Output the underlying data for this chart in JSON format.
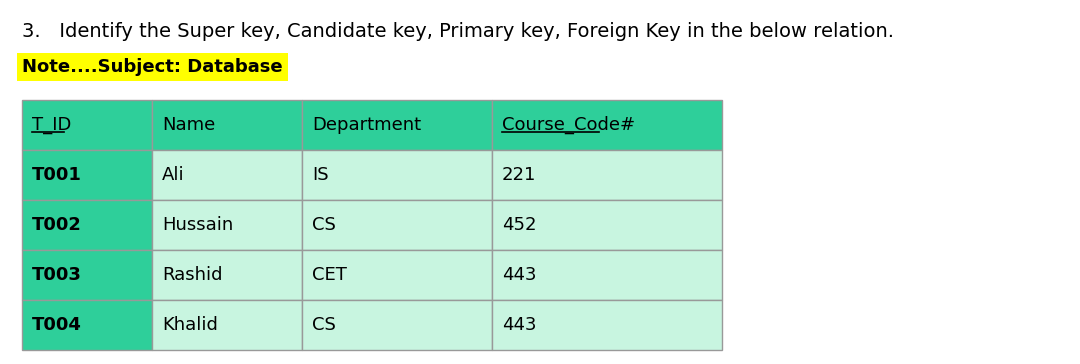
{
  "title": "3.   Identify the Super key, Candidate key, Primary key, Foreign Key in the below relation.",
  "note": "Note....Subject: Database",
  "note_bg": "#ffff00",
  "columns": [
    "T_ID",
    "Name",
    "Department",
    "Course_Code#"
  ],
  "col_underline": [
    true,
    false,
    false,
    true
  ],
  "rows": [
    [
      "T001",
      "Ali",
      "IS",
      "221"
    ],
    [
      "T002",
      "Hussain",
      "CS",
      "452"
    ],
    [
      "T003",
      "Rashid",
      "CET",
      "443"
    ],
    [
      "T004",
      "Khalid",
      "CS",
      "443"
    ]
  ],
  "header_bg": "#2ecf9a",
  "tid_col_bg": "#2ecf9a",
  "data_bg": "#c8f5e0",
  "border_color": "#999999",
  "bg_color": "#ffffff",
  "title_fontsize": 14,
  "note_fontsize": 13,
  "table_fontsize": 13
}
